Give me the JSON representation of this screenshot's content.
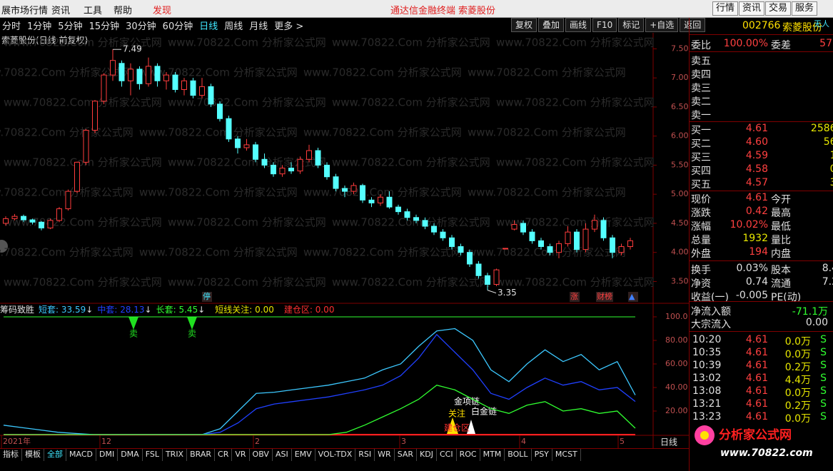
{
  "menu": {
    "left": [
      "展市场行情",
      "资讯",
      "工具",
      "帮助"
    ],
    "discover": "发现",
    "center": [
      "通达信金融终端",
      "索菱股份"
    ],
    "right": [
      "行情",
      "资讯",
      "交易",
      "服务"
    ]
  },
  "periods": {
    "items": [
      "分时",
      "1分钟",
      "5分钟",
      "15分钟",
      "30分钟",
      "60分钟",
      "日线",
      "周线",
      "月线",
      "更多 >"
    ],
    "active": 6
  },
  "tools": [
    "复权",
    "叠加",
    "画线",
    "F10",
    "标记",
    "+自选",
    "返回"
  ],
  "chart_title": "索菱股份(日线 前复权)",
  "watermark": "www.70822.Com 分析家公式网",
  "event_markers": [
    "停",
    "涨",
    "财榜",
    "▲"
  ],
  "dates": [
    "2021年",
    "12",
    "2",
    "3",
    "4",
    "5"
  ],
  "period_label": "日线",
  "indicator_signal": "卖",
  "indicator_notes": [
    "金项链",
    "关注",
    "白金链",
    "建仓区"
  ],
  "indicator_tabs": [
    "指标",
    "模板",
    "全部",
    "MACD",
    "DMI",
    "DMA",
    "FSL",
    "TRIX",
    "BRAR",
    "CR",
    "VR",
    "OBV",
    "ASI",
    "EMV",
    "VOL-TDX",
    "RSI",
    "WR",
    "SAR",
    "KDJ",
    "CCI",
    "ROC",
    "MTM",
    "BOLL",
    "PSY",
    "MCST"
  ],
  "quote": {
    "code": "002766",
    "name": "索菱股份",
    "status": "无人",
    "ratio": [
      "委比",
      "100.00%",
      "委差",
      "57"
    ],
    "asks": [
      "卖五",
      "卖四",
      "卖三",
      "卖二",
      "卖一"
    ],
    "bids": [
      [
        "买一",
        "4.61",
        "2586."
      ],
      [
        "买二",
        "4.60",
        "56."
      ],
      [
        "买三",
        "4.59",
        "1."
      ],
      [
        "买四",
        "4.58",
        "0."
      ],
      [
        "买五",
        "4.57",
        "3."
      ]
    ],
    "stats": [
      [
        "现价",
        "4.61",
        "今开"
      ],
      [
        "涨跌",
        "0.42",
        "最高"
      ],
      [
        "涨幅",
        "10.02%",
        "最低"
      ],
      [
        "总量",
        "1932",
        "量比"
      ],
      [
        "外盘",
        "194",
        "内盘"
      ],
      [
        "换手",
        "0.03%",
        "股本",
        "8.4"
      ],
      [
        "净资",
        "0.74",
        "流通",
        "7.2"
      ],
      [
        "收益(一)",
        "-0.005",
        "PE(动)"
      ]
    ],
    "stat_colors": [
      "#ff4040",
      "#ff4040",
      "#ff4040",
      "#e8e800",
      "#ff4040",
      "#e0e0e0",
      "#e0e0e0",
      "#e0e0e0"
    ],
    "flows": [
      [
        "净流入额",
        "-71.1万"
      ],
      [
        "大宗流入",
        "0.00"
      ]
    ],
    "trades": [
      [
        "10:20",
        "4.61",
        "0.0万",
        "S"
      ],
      [
        "10:35",
        "4.61",
        "0.0万",
        "S"
      ],
      [
        "10:39",
        "4.61",
        "0.2万",
        "S"
      ],
      [
        "13:02",
        "4.61",
        "4.4万",
        "S"
      ],
      [
        "13:08",
        "4.61",
        "0.0万",
        "S"
      ],
      [
        "13:21",
        "4.61",
        "0.2万",
        "S"
      ],
      [
        "13:23",
        "4.61",
        "0.0万",
        "S"
      ]
    ]
  },
  "logo": [
    "分析家公式网",
    "www.70822.com"
  ],
  "chart_data": [
    {
      "type": "candlestick",
      "up_color": "#ff3c3c",
      "down_color": "#54ffff",
      "open": [
        4.5,
        4.58,
        4.62,
        4.56,
        4.52,
        4.42,
        4.55,
        4.75,
        5.05,
        5.55,
        6.1,
        6.6,
        7.05,
        7.25,
        6.95,
        7.15,
        6.9,
        7.2,
        6.95,
        7.05,
        6.8,
        6.95,
        6.7,
        6.85,
        6.55,
        6.3,
        5.95,
        5.8,
        5.85,
        5.6,
        5.5,
        5.35,
        5.45,
        5.4,
        5.6,
        5.75,
        5.5,
        5.3,
        5.1,
        5.05,
        5.15,
        4.9,
        4.85,
        4.95,
        4.78,
        4.7,
        4.6,
        4.55,
        4.45,
        4.35,
        4.25,
        4.1,
        4.0,
        3.8,
        3.6,
        3.45,
        4.07,
        4.4,
        4.5,
        4.35,
        4.2,
        4.1,
        4.0,
        4.15,
        4.35,
        4.05,
        4.4,
        4.55,
        4.25,
        4.0,
        4.1
      ],
      "high": [
        4.62,
        4.66,
        4.65,
        4.58,
        4.54,
        4.58,
        4.78,
        5.08,
        5.56,
        6.12,
        6.62,
        7.08,
        7.49,
        7.3,
        7.25,
        7.2,
        7.35,
        7.25,
        7.1,
        7.1,
        7.0,
        7.0,
        7.0,
        6.9,
        6.6,
        6.35,
        6.0,
        5.95,
        5.9,
        5.7,
        5.55,
        5.5,
        5.55,
        5.65,
        5.85,
        5.8,
        5.55,
        5.35,
        5.15,
        5.2,
        5.18,
        4.95,
        5.0,
        5.05,
        4.82,
        4.75,
        4.65,
        4.6,
        4.5,
        4.4,
        4.3,
        4.15,
        4.05,
        3.85,
        3.65,
        3.72,
        4.07,
        4.55,
        4.55,
        4.4,
        4.25,
        4.15,
        4.2,
        4.45,
        4.4,
        4.5,
        4.65,
        4.6,
        4.3,
        4.15,
        4.25
      ],
      "low": [
        4.46,
        4.55,
        4.52,
        4.48,
        4.38,
        4.4,
        4.52,
        4.72,
        5.02,
        5.5,
        6.05,
        6.55,
        6.95,
        6.85,
        6.7,
        6.8,
        6.85,
        6.85,
        6.8,
        6.75,
        6.7,
        6.65,
        6.65,
        6.5,
        6.25,
        5.9,
        5.7,
        5.75,
        5.55,
        5.45,
        5.3,
        5.3,
        5.35,
        5.35,
        5.55,
        5.45,
        5.25,
        5.05,
        4.95,
        5.0,
        4.85,
        4.78,
        4.8,
        4.75,
        4.65,
        4.55,
        4.5,
        4.4,
        4.3,
        4.2,
        4.05,
        3.95,
        3.75,
        3.55,
        3.35,
        3.42,
        4.07,
        4.38,
        4.3,
        4.15,
        4.05,
        3.95,
        3.9,
        4.1,
        4.0,
        4.0,
        4.35,
        4.2,
        3.9,
        3.95,
        4.05
      ],
      "close": [
        4.58,
        4.62,
        4.56,
        4.52,
        4.42,
        4.55,
        4.75,
        5.05,
        5.55,
        6.1,
        6.6,
        7.05,
        7.3,
        6.95,
        7.15,
        6.9,
        7.2,
        6.95,
        7.05,
        6.8,
        6.95,
        6.7,
        6.85,
        6.55,
        6.3,
        5.95,
        5.8,
        5.85,
        5.6,
        5.5,
        5.35,
        5.45,
        5.4,
        5.6,
        5.75,
        5.5,
        5.3,
        5.1,
        5.05,
        5.15,
        4.9,
        4.85,
        4.95,
        4.78,
        4.7,
        4.6,
        4.55,
        4.45,
        4.35,
        4.25,
        4.1,
        4.0,
        3.8,
        3.6,
        3.45,
        3.7,
        4.07,
        4.48,
        4.35,
        4.2,
        4.1,
        4.0,
        4.15,
        4.35,
        4.05,
        4.4,
        4.55,
        4.25,
        4.0,
        4.1,
        4.2
      ],
      "ylim": [
        3.125,
        7.775
      ],
      "yticks": [
        {
          "value": 3.5,
          "label": "3.50"
        },
        {
          "value": 4,
          "label": "4.00"
        },
        {
          "value": 4.5,
          "label": "4.50"
        },
        {
          "value": 5,
          "label": "5.00"
        },
        {
          "value": 5.5,
          "label": "5.50"
        },
        {
          "value": 6,
          "label": "6.00"
        },
        {
          "value": 6.5,
          "label": "6.50"
        },
        {
          "value": 7,
          "label": "7.00"
        },
        {
          "value": 7.5,
          "label": "7.50"
        }
      ]
    },
    {
      "type": "line",
      "title": "筹码致胜",
      "label_separator": ": ",
      "trend_mark": "↓",
      "series": [
        {
          "name": "短套",
          "color": "#3cc8ff",
          "values": [
            8,
            6,
            4,
            2,
            1,
            0,
            0,
            0,
            0,
            0,
            0,
            0,
            5,
            20,
            35,
            36,
            38,
            40,
            42,
            45,
            48,
            55,
            60,
            75,
            88,
            90,
            80,
            55,
            45,
            60,
            72,
            62,
            68,
            55,
            62,
            33.59
          ]
        },
        {
          "name": "中套",
          "color": "#2040ff",
          "values": [
            0,
            0,
            0,
            0,
            0,
            0,
            0,
            0,
            0,
            0,
            0,
            0,
            2,
            10,
            22,
            26,
            28,
            30,
            32,
            35,
            38,
            42,
            50,
            65,
            85,
            70,
            55,
            35,
            30,
            40,
            48,
            42,
            45,
            38,
            40,
            28.13
          ]
        },
        {
          "name": "长套",
          "color": "#30ff30",
          "values": [
            0,
            0,
            0,
            0,
            0,
            0,
            0,
            0,
            0,
            0,
            0,
            0,
            0,
            0,
            0,
            0,
            0,
            0,
            0,
            2,
            8,
            15,
            22,
            30,
            42,
            38,
            30,
            22,
            18,
            25,
            28,
            20,
            22,
            18,
            20,
            5.45
          ]
        }
      ],
      "notes": [
        {
          "name": "短线关注",
          "value": "0.00",
          "color": "#e8e800"
        },
        {
          "name": "建仓区",
          "value": "0.00",
          "color": "#ff3030"
        }
      ],
      "reference": 100,
      "reference_color": "#30ff30",
      "ylim": [
        0,
        111.5
      ],
      "yticks": [
        {
          "value": 20,
          "label": "20.00"
        },
        {
          "value": 40,
          "label": "40.00"
        },
        {
          "value": 60,
          "label": "60.00"
        },
        {
          "value": 80,
          "label": "80.00"
        },
        {
          "value": 100,
          "label": "100.0"
        }
      ]
    }
  ]
}
